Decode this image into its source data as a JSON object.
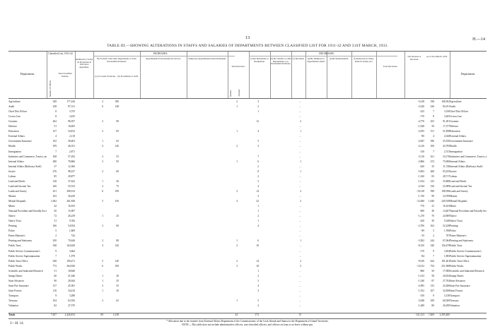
{
  "page": {
    "page_number": "13",
    "code_tag": "H.—14",
    "title": "TABLE III.—SHOWING ALTERATIONS IN STAFFS AND SALARIES OF DEPARTMENTS BETWEEN CLASSIFIED LIST FOR 1931-32 AND 31ST MARCH, 1933.",
    "bottom_left_code": "3—H. 14."
  },
  "header": {
    "department_label": "Department.",
    "group_classified": "Classified List, 1931-32.",
    "group_additional": "Additional to Salary on Promotion in 1932 since Appointed.",
    "group_increases": "INCREASES.",
    "group_by_transfer_in": "By Transfer from other Departments or from Unclassified Positions.",
    "group_appointments": "Appointments from Outside the Service.",
    "group_new_entrants": "New Entrants.",
    "group_temporary": "Temporary Appointments made Permanent.",
    "group_total_increases": "Total Increases.",
    "group_decreases": "DECREASES.",
    "group_retirements": "(a) By Retirement or Resignation.",
    "group_transfer_out": "(b) By Transfer to other Departments or to Unclassified Positions.",
    "group_death": "(c) By Death.",
    "group_dismissal": "(d) By Dismissal or Appointment ended.",
    "group_reinstatement": "(e) By Reinstatement.",
    "group_reduction": "(f) Reduction in Salary under Economy Act.",
    "group_total_decreases": "Total Decreases.",
    "group_net": "Net Increase or Decrease.",
    "group_as_at": "As at 31st March, 1933.",
    "col_number": "Number of Officers.",
    "col_salaries": "Total Classified Salaries.",
    "col_amount": "Amount.",
    "col_number_short": "Number.",
    "col_to_grade": "(a) To Grade Vacancies.",
    "col_in_addition": "(b) In Addition to Staff.",
    "col_department_right": "Department."
  },
  "rows": [
    {
      "dept": "Agriculture",
      "n": "349",
      "sal": "177,244",
      "a1": "2",
      "a2": "180",
      "t": "2",
      "r": "3",
      "d": "...",
      "net": "-5,418",
      "n2": "338",
      "s2": "168,304"
    },
    {
      "dept": "Audit",
      "n": "238",
      "sal": "87,511",
      "a1": "6",
      "a2": "148",
      "t": "1",
      "r": "2",
      "d": "...",
      "net": "-3,320",
      "n2": "236",
      "s2": "84,191"
    },
    {
      "dept": "Chief Dist Officer",
      "n": "8",
      "sal": "3,755",
      "a1": "",
      "a2": "",
      "t": "",
      "r": "1",
      "d": "...",
      "net": "-225",
      "n2": "7",
      "s2": "3,530"
    },
    {
      "dept": "Crown Law",
      "n": "8",
      "sal": "3,435",
      "a1": "",
      "a2": "",
      "t": "",
      "r": "",
      "d": "...",
      "net": "-170",
      "n2": "8",
      "s2": "3,265"
    },
    {
      "dept": "Customs",
      "n": "262",
      "sal": "96,057",
      "a1": "3",
      "a2": "90",
      "t": "",
      "r": "12",
      "d": "2",
      "net": "-4,776",
      "n2": "253",
      "s2": "91,281"
    },
    {
      "dept": "Defence",
      "n": "51",
      "sal": "18,405",
      "a1": "",
      "a2": "",
      "t": "",
      "r": "",
      "d": "...",
      "net": "-1,028",
      "n2": "50",
      "s2": "17,377"
    },
    {
      "dept": "Education",
      "n": "157",
      "sal": "54,813",
      "a1": "3",
      "a2": "85",
      "t": "1",
      "r": "4",
      "d": "1",
      "net": "-2,955",
      "n2": "151",
      "s2": "51,858"
    },
    {
      "dept": "External Affairs",
      "n": "4",
      "sal": "2,110",
      "a1": "",
      "a2": "",
      "t": "",
      "r": "",
      "d": "...",
      "net": "-90",
      "n2": "4",
      "s2": "2,020"
    },
    {
      "dept": "Government Insurance",
      "n": "192",
      "sal": "58,403",
      "a1": "1",
      "a2": "65",
      "t": "",
      "r": "5",
      "d": "...",
      "net": "-2,847",
      "n2": "186",
      "s2": "55,556"
    },
    {
      "dept": "Health",
      "n": "109",
      "sal": "46,011",
      "a1": "4",
      "a2": "120",
      "t": "2",
      "r": "3",
      "d": "...",
      "net": "-2,216",
      "n2": "106",
      "s2": "43,795"
    },
    {
      "dept": "Immigration",
      "n": "7",
      "sal": "2,871",
      "a1": "",
      "a2": "",
      "t": "",
      "r": "",
      "d": "...",
      "net": "-130",
      "n2": "7",
      "s2": "2,741"
    },
    {
      "dept": "Industries and Commerce, Tourist, and Publicity",
      "n": "168",
      "sal": "57,292",
      "a1": "2",
      "a2": "55",
      "t": "",
      "r": "7",
      "d": "...",
      "net": "-3,116",
      "n2": "161",
      "s2": "54,176"
    },
    {
      "dept": "Internal Affairs",
      "n": "280",
      "sal": "78,866",
      "a1": "3",
      "a2": "95",
      "t": "1",
      "r": "6",
      "d": "1",
      "net": "-3,866",
      "n2": "274",
      "s2": "75,000"
    },
    {
      "dept": "Internal Affairs (Railways Staff)",
      "n": "37",
      "sal": "12,360",
      "a1": "",
      "a2": "",
      "t": "",
      "r": "2",
      "d": "...",
      "net": "-620",
      "n2": "35",
      "s2": "11,740"
    },
    {
      "dept": "Justice",
      "n": "276",
      "sal": "98,237",
      "a1": "2",
      "a2": "60",
      "t": "",
      "r": "8",
      "d": "1",
      "net": "-5,002",
      "n2": "268",
      "s2": "93,235"
    },
    {
      "dept": "Labour",
      "n": "85",
      "sal": "29,877",
      "a1": "",
      "a2": "",
      "t": "",
      "r": "2",
      "d": "...",
      "net": "-1,160",
      "n2": "83",
      "s2": "28,717"
    },
    {
      "dept": "Land and Deeds",
      "n": "128",
      "sal": "37,622",
      "a1": "1",
      "a2": "30",
      "t": "",
      "r": "3",
      "d": "...",
      "net": "-1,814",
      "n2": "125",
      "s2": "35,808"
    },
    {
      "dept": "Land and Income Tax",
      "n": "160",
      "sal": "55,533",
      "a1": "2",
      "a2": "75",
      "t": "",
      "r": "4",
      "d": "...",
      "net": "-2,544",
      "n2": "156",
      "s2": "52,989"
    },
    {
      "dept": "Lands and Survey",
      "n": "611",
      "sal": "208,914",
      "a1": "6",
      "a2": "190",
      "t": "3",
      "r": "14",
      "d": "2",
      "net": "-10,318",
      "n2": "598",
      "s2": "198,596"
    },
    {
      "dept": "Marine",
      "n": "102",
      "sal": "36,429",
      "a1": "",
      "a2": "",
      "t": "",
      "r": "3",
      "d": "...",
      "net": "-1,720",
      "n2": "99",
      "s2": "34,709"
    },
    {
      "dept": "Mental Hospitals",
      "n": "1,062",
      "sal": "261,838",
      "a1": "5",
      "a2": "150",
      "t": "4",
      "r": "22",
      "d": "3",
      "net": "-12,480",
      "n2": "1,040",
      "s2": "249,358"
    },
    {
      "dept": "Mines",
      "n": "42",
      "sal": "16,933",
      "a1": "",
      "a2": "",
      "t": "",
      "r": "1",
      "d": "...",
      "net": "-770",
      "n2": "41",
      "s2": "16,163"
    },
    {
      "dept": "National Provident and Friendly Societies",
      "n": "50",
      "sal": "15,097",
      "a1": "",
      "a2": "",
      "t": "",
      "r": "1",
      "d": "...",
      "net": "-690",
      "n2": "49",
      "s2": "14,407"
    },
    {
      "dept": "Native",
      "n": "72",
      "sal": "26,239",
      "a1": "1",
      "a2": "25",
      "t": "",
      "r": "2",
      "d": "...",
      "net": "-1,270",
      "n2": "70",
      "s2": "24,969"
    },
    {
      "dept": "Native Trust",
      "n": "31",
      "sal": "9,766",
      "a1": "",
      "a2": "",
      "t": "",
      "r": "1",
      "d": "...",
      "net": "-420",
      "n2": "30",
      "s2": "9,346"
    },
    {
      "dept": "Printing",
      "n": "166",
      "sal": "54,934",
      "a1": "2",
      "a2": "60",
      "t": "",
      "r": "4",
      "d": "...",
      "net": "-2,706",
      "n2": "162",
      "s2": "52,228"
    },
    {
      "dept": "Police",
      "n": "5",
      "sal": "1,869",
      "a1": "",
      "a2": "",
      "t": "",
      "r": "",
      "d": "...",
      "net": "-89",
      "n2": "5",
      "s2": "1,780"
    },
    {
      "dept": "Prime Minister's",
      "n": "2",
      "sal": "742",
      "a1": "",
      "a2": "",
      "t": "",
      "r": "",
      "d": "...",
      "net": "-35",
      "n2": "2",
      "s2": "707"
    },
    {
      "dept": "Printing and Stationery",
      "n": "250",
      "sal": "70,446",
      "a1": "2",
      "a2": "80",
      "t": "1",
      "r": "6",
      "d": "1",
      "net": "-3,382",
      "n2": "244",
      "s2": "67,064"
    },
    {
      "dept": "Public Trust",
      "n": "548",
      "sal": "164,629",
      "a1": "4",
      "a2": "120",
      "t": "2",
      "r": "10",
      "d": "...",
      "net": "-8,150",
      "n2": "540",
      "s2": "156,479"
    },
    {
      "dept": "Public Service Commissioner's",
      "n": "9",
      "sal": "3,664",
      "a1": "",
      "a2": "",
      "t": "",
      "r": "",
      "d": "...",
      "net": "-170",
      "n2": "9",
      "s2": "3,494"
    },
    {
      "dept": "Public Service Superannuation",
      "n": "7",
      "sal": "1,979",
      "a1": "",
      "a2": "",
      "t": "",
      "r": "",
      "d": "...",
      "net": "-84",
      "n2": "7",
      "s2": "1,895"
    },
    {
      "dept": "Public Trust Office",
      "n": "638",
      "sal": "190,471",
      "a1": "5",
      "a2": "140",
      "t": "2",
      "r": "14",
      "d": "2",
      "net": "-9,010",
      "n2": "624",
      "s2": "181,461"
    },
    {
      "dept": "Public Works",
      "n": "772",
      "sal": "264,920",
      "a1": "6",
      "a2": "190",
      "t": "3",
      "r": "18",
      "d": "2",
      "net": "-13,012",
      "n2": "754",
      "s2": "251,908"
    },
    {
      "dept": "Scientific and Industrial Research",
      "n": "51",
      "sal": "18,840",
      "a1": "",
      "a2": "",
      "t": "",
      "r": "1",
      "d": "...",
      "net": "-860",
      "n2": "50",
      "s2": "17,980"
    },
    {
      "dept": "Stamp Duties",
      "n": "60",
      "sal": "21,046",
      "a1": "1",
      "a2": "30",
      "t": "",
      "r": "2",
      "d": "...",
      "net": "-1,012",
      "n2": "58",
      "s2": "20,034"
    },
    {
      "dept": "State Advances",
      "n": "90",
      "sal": "29,044",
      "a1": "1",
      "a2": "35",
      "t": "",
      "r": "3",
      "d": "...",
      "net": "-1,340",
      "n2": "87",
      "s2": "27,704"
    },
    {
      "dept": "State Fire Insurance",
      "n": "137",
      "sal": "45,381",
      "a1": "2",
      "a2": "55",
      "t": "",
      "r": "4",
      "d": "...",
      "net": "-2,095",
      "n2": "133",
      "s2": "43,286"
    },
    {
      "dept": "State Forests",
      "n": "110",
      "sal": "34,410",
      "a1": "1",
      "a2": "30",
      "t": "",
      "r": "3",
      "d": "...",
      "net": "-1,552",
      "n2": "107",
      "s2": "32,858"
    },
    {
      "dept": "Transport",
      "n": "9",
      "sal": "3,288",
      "a1": "",
      "a2": "",
      "t": "",
      "r": "",
      "d": "...",
      "net": "-150",
      "n2": "9",
      "s2": "3,138"
    },
    {
      "dept": "Treasury",
      "n": "194",
      "sal": "63,556",
      "a1": "2",
      "a2": "65",
      "t": "1",
      "r": "5",
      "d": "...",
      "net": "-3,048",
      "n2": "189",
      "s2": "60,508"
    },
    {
      "dept": "Valuation",
      "n": "82",
      "sal": "27,570",
      "a1": "",
      "a2": "",
      "t": "",
      "r": "2",
      "d": "...",
      "net": "-1,280",
      "n2": "80",
      "s2": "26,290"
    }
  ],
  "totals": {
    "label": "Totals",
    "n": "7,657",
    "sal": "2,426,813",
    "a1": "69",
    "a2": "2,138",
    "t": "24",
    "r": "173",
    "d": "15",
    "net": "-121,413",
    "n2": "7,469",
    "s2": "2,305,400"
  },
  "footnotes": {
    "note1": "* Allocation due to the transfer from External Affairs Department of the Commissioners of the Cook Islands and Samoa to the Department of Island Territories.",
    "note2": "NOTE.—This table does not include administrative officers, non-classified officers, and officers on loan or on leave without pay."
  }
}
